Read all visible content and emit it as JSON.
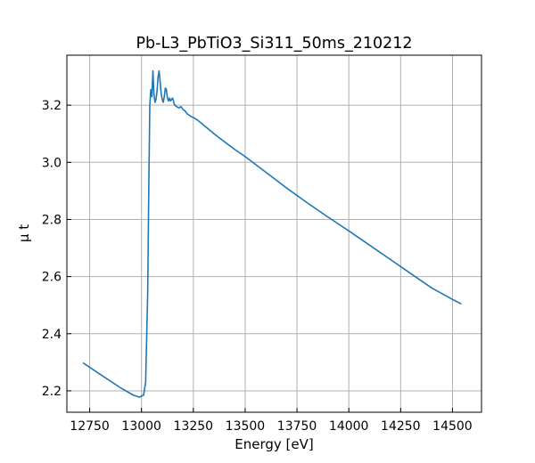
{
  "chart_data": {
    "type": "line",
    "title": "Pb-L3_PbTiO3_Si311_50ms_210212",
    "xlabel": "Energy [eV]",
    "ylabel": "μ t",
    "xlim": [
      12640,
      14640
    ],
    "ylim": [
      2.125,
      3.375
    ],
    "xticks": [
      12750,
      13000,
      13250,
      13500,
      13750,
      14000,
      14250,
      14500
    ],
    "yticks": [
      2.2,
      2.4,
      2.6,
      2.8,
      3.0,
      3.2
    ],
    "xtick_labels": [
      "12750",
      "13000",
      "13250",
      "13500",
      "13750",
      "14000",
      "14250",
      "14500"
    ],
    "ytick_labels": [
      "2.2",
      "2.4",
      "2.6",
      "2.8",
      "3.0",
      "3.2"
    ],
    "grid": true,
    "line_color": "#1f77b4",
    "series": [
      {
        "x": [
          12720,
          12800,
          12900,
          12960,
          12990,
          13010,
          13020,
          13030,
          13035,
          13040,
          13045,
          13050,
          13055,
          13060,
          13065,
          13070,
          13075,
          13080,
          13085,
          13090,
          13095,
          13100,
          13105,
          13110,
          13115,
          13120,
          13125,
          13130,
          13135,
          13140,
          13145,
          13150,
          13160,
          13170,
          13180,
          13190,
          13200,
          13210,
          13220,
          13230,
          13240,
          13250,
          13270,
          13300,
          13350,
          13400,
          13450,
          13500,
          13600,
          13700,
          13800,
          13900,
          14000,
          14100,
          14200,
          14300,
          14400,
          14500,
          14540
        ],
        "y": [
          2.297,
          2.258,
          2.21,
          2.185,
          2.178,
          2.185,
          2.23,
          2.55,
          2.9,
          3.2,
          3.255,
          3.23,
          3.32,
          3.24,
          3.21,
          3.22,
          3.25,
          3.3,
          3.32,
          3.28,
          3.24,
          3.22,
          3.21,
          3.23,
          3.26,
          3.255,
          3.225,
          3.215,
          3.225,
          3.215,
          3.22,
          3.225,
          3.2,
          3.195,
          3.19,
          3.195,
          3.185,
          3.18,
          3.17,
          3.165,
          3.16,
          3.157,
          3.148,
          3.13,
          3.1,
          3.072,
          3.045,
          3.02,
          2.965,
          2.91,
          2.858,
          2.808,
          2.76,
          2.71,
          2.66,
          2.61,
          2.56,
          2.52,
          2.505
        ]
      }
    ]
  }
}
